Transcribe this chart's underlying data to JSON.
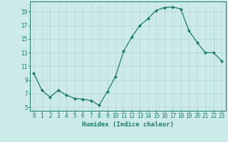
{
  "x": [
    0,
    1,
    2,
    3,
    4,
    5,
    6,
    7,
    8,
    9,
    10,
    11,
    12,
    13,
    14,
    15,
    16,
    17,
    18,
    19,
    20,
    21,
    22,
    23
  ],
  "y": [
    10.0,
    7.5,
    6.5,
    7.5,
    6.8,
    6.3,
    6.2,
    6.0,
    5.3,
    7.3,
    9.5,
    13.2,
    15.3,
    17.0,
    18.0,
    19.2,
    19.6,
    19.7,
    19.4,
    16.2,
    14.5,
    13.0,
    13.0,
    11.8
  ],
  "line_color": "#1a7a6e",
  "marker": "D",
  "marker_size": 2.2,
  "bg_color": "#cceae8",
  "grid_color": "#b0d8d5",
  "xlabel": "Humidex (Indice chaleur)",
  "xlim": [
    -0.5,
    23.5
  ],
  "ylim": [
    4.5,
    20.5
  ],
  "yticks": [
    5,
    7,
    9,
    11,
    13,
    15,
    17,
    19
  ],
  "xticks": [
    0,
    1,
    2,
    3,
    4,
    5,
    6,
    7,
    8,
    9,
    10,
    11,
    12,
    13,
    14,
    15,
    16,
    17,
    18,
    19,
    20,
    21,
    22,
    23
  ],
  "tick_fontsize": 5.5,
  "xlabel_fontsize": 6.5
}
